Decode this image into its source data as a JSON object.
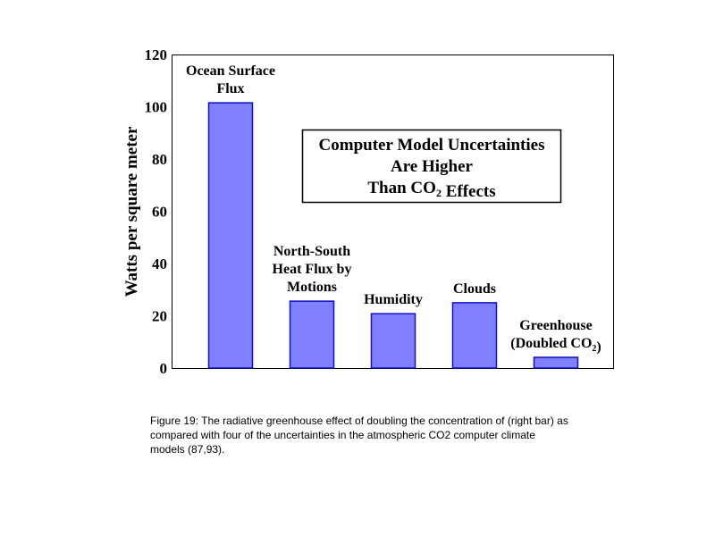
{
  "chart_data": {
    "type": "bar",
    "categories": [
      [
        [
          "Ocean Surface"
        ],
        [
          "Flux"
        ]
      ],
      [
        [
          "North-South"
        ],
        [
          "Heat Flux by"
        ],
        [
          "Motions"
        ]
      ],
      [
        [
          "Humidity"
        ]
      ],
      [
        [
          "Clouds"
        ]
      ],
      [
        [
          "Greenhouse"
        ],
        [
          "(Doubled CO",
          {
            "sub": "2"
          },
          ")"
        ]
      ]
    ],
    "category_names": [
      "Ocean Surface Flux",
      "North-South Heat Flux by Motions",
      "Humidity",
      "Clouds",
      "Greenhouse (Doubled CO2)"
    ],
    "values": [
      101.5,
      25.6,
      20.8,
      25.0,
      4.1
    ],
    "ylabel": "Watts per square meter",
    "xlabel": "",
    "ylim": [
      0,
      120
    ],
    "yticks": [
      0,
      20,
      40,
      60,
      80,
      100,
      120
    ],
    "grid": false,
    "bar_color": "#8080ff",
    "bar_edge_color": "#1010c0",
    "annotation": [
      [
        "Computer Model Uncertainties"
      ],
      [
        "Are Higher"
      ],
      [
        "Than CO",
        {
          "sub": "2"
        },
        " Effects"
      ]
    ]
  },
  "caption": [
    "Figure 19: The radiative greenhouse effect of doubling the concentration of (right bar) as",
    "compared with four of the uncertainties in the atmospheric CO2 computer climate",
    "models (87,93)."
  ]
}
